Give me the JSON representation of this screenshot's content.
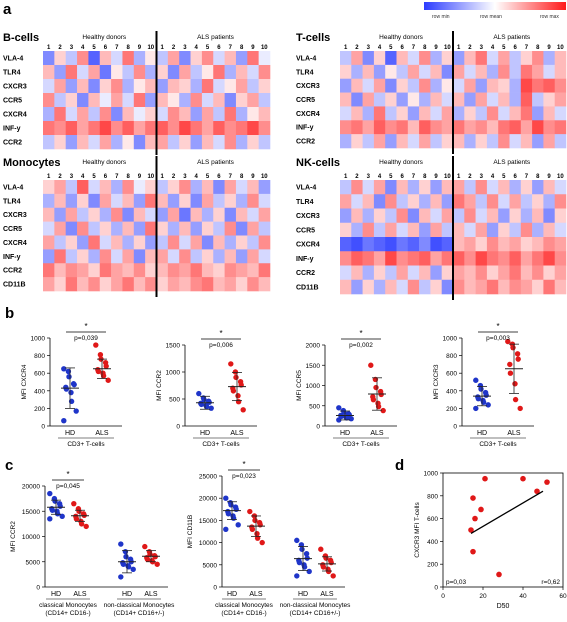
{
  "panel_letters": {
    "a": "a",
    "b": "b",
    "c": "c",
    "d": "d"
  },
  "legend": {
    "min": "row min",
    "mean": "row mean",
    "max": "row max",
    "colors": [
      "#2c3cff",
      "#ffffff",
      "#ff1a1a"
    ]
  },
  "heatmap_common": {
    "hd_label": "Healthy donors",
    "als_label": "ALS patients",
    "col_numbers": [
      "1",
      "2",
      "3",
      "4",
      "5",
      "6",
      "7",
      "8",
      "9",
      "10"
    ]
  },
  "heatmaps": [
    {
      "title": "B-cells",
      "rows": [
        "VLA-4",
        "TLR4",
        "CXCR3",
        "CCR5",
        "CXCR4",
        "INF-y",
        "CCR2"
      ],
      "cells": [
        [
          -0.6,
          0.2,
          -0.3,
          0.5,
          -0.8,
          0.3,
          -0.2,
          0.6,
          -0.4,
          0.1,
          -0.3,
          0.4,
          -0.6,
          0.2,
          0.5,
          -0.2,
          0.3,
          -0.5,
          0.6,
          -0.1
        ],
        [
          0.3,
          -0.5,
          0.6,
          -0.2,
          0.4,
          -0.7,
          0.1,
          -0.3,
          0.5,
          -0.4,
          0.2,
          -0.6,
          0.4,
          -0.3,
          0.1,
          0.6,
          -0.4,
          0.3,
          -0.2,
          0.5
        ],
        [
          -0.2,
          0.4,
          -0.5,
          0.3,
          -0.6,
          0.2,
          0.5,
          -0.4,
          0.1,
          0.3,
          -0.5,
          0.3,
          0.2,
          -0.4,
          0.6,
          -0.2,
          0.1,
          0.4,
          -0.3,
          0.2
        ],
        [
          0.5,
          -0.3,
          0.2,
          -0.6,
          0.3,
          -0.1,
          0.4,
          -0.2,
          0.6,
          -0.5,
          0.3,
          0.1,
          -0.4,
          0.5,
          -0.2,
          0.3,
          -0.6,
          0.2,
          0.4,
          -0.3
        ],
        [
          -0.4,
          0.6,
          -0.2,
          0.4,
          -0.3,
          0.5,
          -0.6,
          0.3,
          -0.1,
          0.2,
          -0.2,
          0.5,
          0.3,
          -0.5,
          0.4,
          -0.3,
          0.6,
          -0.4,
          0.1,
          0.3
        ],
        [
          0.6,
          0.5,
          0.7,
          0.4,
          0.6,
          0.8,
          0.5,
          0.7,
          0.4,
          0.6,
          0.7,
          0.5,
          0.8,
          0.6,
          0.4,
          0.7,
          0.5,
          0.6,
          0.8,
          0.5
        ],
        [
          -0.3,
          0.2,
          -0.5,
          0.3,
          -0.2,
          0.4,
          -0.4,
          0.1,
          -0.6,
          0.3,
          0.4,
          -0.3,
          0.2,
          -0.5,
          0.3,
          -0.2,
          0.5,
          -0.4,
          0.2,
          -0.3
        ]
      ]
    },
    {
      "title": "T-cells",
      "rows": [
        "VLA-4",
        "TLR4",
        "CXCR3",
        "CCR5",
        "CXCR4",
        "INF-y",
        "CCR2"
      ],
      "cells": [
        [
          -0.3,
          0.4,
          -0.6,
          0.2,
          -0.8,
          0.3,
          -0.2,
          0.5,
          -0.4,
          0.2,
          -0.5,
          0.3,
          0.6,
          -0.2,
          0.4,
          -0.3,
          0.2,
          0.5,
          -0.4,
          0.3
        ],
        [
          0.2,
          -0.4,
          0.3,
          -0.5,
          0.1,
          -0.3,
          0.4,
          -0.2,
          0.3,
          -0.6,
          0.4,
          -0.2,
          0.3,
          -0.4,
          0.5,
          -0.3,
          0.6,
          0.4,
          -0.2,
          0.3
        ],
        [
          -0.5,
          0.3,
          -0.2,
          0.4,
          -0.6,
          0.2,
          -0.3,
          0.5,
          -0.4,
          0.1,
          -0.2,
          0.4,
          -0.5,
          0.3,
          0.2,
          -0.4,
          0.8,
          0.6,
          0.7,
          0.5
        ],
        [
          0.3,
          -0.6,
          0.4,
          -0.3,
          0.2,
          -0.5,
          0.1,
          -0.4,
          0.3,
          -0.2,
          0.3,
          -0.5,
          0.4,
          -0.2,
          0.3,
          -0.4,
          0.7,
          -0.3,
          0.2,
          0.4
        ],
        [
          -0.2,
          0.3,
          -0.4,
          0.6,
          -0.3,
          0.2,
          -0.5,
          0.3,
          -0.2,
          0.4,
          -0.4,
          0.2,
          -0.3,
          0.5,
          -0.2,
          0.3,
          0.6,
          -0.5,
          0.3,
          -0.2
        ],
        [
          0.5,
          0.6,
          0.4,
          0.7,
          0.5,
          0.6,
          0.3,
          0.7,
          0.5,
          0.4,
          0.6,
          0.4,
          0.5,
          0.3,
          0.6,
          0.7,
          0.4,
          0.8,
          0.5,
          0.6
        ],
        [
          -0.4,
          0.2,
          -0.3,
          0.4,
          -0.5,
          0.3,
          -0.2,
          0.4,
          -0.3,
          0.2,
          0.3,
          -0.4,
          0.2,
          -0.3,
          0.5,
          -0.2,
          0.3,
          -0.5,
          0.4,
          -0.3
        ]
      ]
    },
    {
      "title": "Monocytes",
      "rows": [
        "VLA-4",
        "TLR4",
        "CXCR3",
        "CCR5",
        "CXCR4",
        "INF-y",
        "CCR2",
        "CD11B"
      ],
      "cells": [
        [
          0.2,
          0.4,
          -0.3,
          0.7,
          -0.2,
          0.3,
          -0.4,
          0.5,
          -0.1,
          0.2,
          -0.3,
          0.2,
          0.5,
          -0.4,
          0.3,
          -0.6,
          0.4,
          -0.2,
          0.3,
          -0.5
        ],
        [
          -0.4,
          0.3,
          -0.5,
          0.2,
          -0.6,
          0.4,
          -0.2,
          0.3,
          -0.5,
          0.6,
          0.3,
          -0.5,
          0.2,
          -0.6,
          0.4,
          -0.3,
          0.2,
          -0.4,
          0.5,
          -0.2
        ],
        [
          0.3,
          -0.5,
          0.4,
          -0.3,
          0.2,
          -0.4,
          0.5,
          -0.6,
          0.3,
          -0.2,
          -0.5,
          0.4,
          -0.7,
          0.3,
          -0.4,
          0.2,
          -0.6,
          0.3,
          -0.2,
          0.4
        ],
        [
          -0.2,
          0.4,
          -0.6,
          0.5,
          -0.3,
          0.2,
          -0.4,
          0.3,
          -0.5,
          0.6,
          0.2,
          -0.4,
          0.3,
          -0.5,
          0.2,
          -0.3,
          0.5,
          -0.6,
          0.4,
          -0.3
        ],
        [
          0.4,
          -0.3,
          0.2,
          -0.5,
          0.6,
          -0.2,
          0.3,
          -0.4,
          0.2,
          -0.5,
          -0.3,
          0.5,
          -0.2,
          0.4,
          -0.6,
          0.3,
          -0.4,
          0.2,
          -0.3,
          0.5
        ],
        [
          -0.5,
          0.6,
          -0.3,
          0.2,
          -0.4,
          0.5,
          -0.2,
          0.4,
          -0.6,
          0.3,
          0.4,
          -0.2,
          0.5,
          -0.3,
          0.2,
          -0.4,
          0.3,
          -0.5,
          0.4,
          -0.2
        ],
        [
          0.6,
          0.3,
          0.5,
          0.4,
          0.2,
          0.6,
          0.4,
          0.3,
          0.5,
          0.2,
          0.3,
          0.5,
          0.4,
          0.6,
          0.3,
          0.2,
          0.5,
          0.4,
          0.3,
          0.6
        ],
        [
          0.4,
          0.2,
          0.6,
          0.3,
          0.5,
          0.2,
          0.4,
          0.6,
          0.3,
          0.5,
          0.2,
          0.4,
          0.3,
          0.5,
          0.6,
          0.3,
          0.4,
          0.2,
          0.5,
          0.3
        ]
      ]
    },
    {
      "title": "NK-cells",
      "rows": [
        "VLA-4",
        "TLR4",
        "CXCR3",
        "CCR5",
        "CXCR4",
        "INF-y",
        "CCR2",
        "CD11B"
      ],
      "cells": [
        [
          -0.3,
          0.5,
          -0.2,
          0.4,
          -0.6,
          0.3,
          -0.4,
          0.2,
          -0.5,
          0.3,
          0.4,
          -0.3,
          0.5,
          -0.2,
          0.3,
          -0.4,
          0.2,
          -0.5,
          0.3,
          -0.2
        ],
        [
          0.4,
          -0.2,
          0.3,
          -0.6,
          0.5,
          -0.3,
          0.2,
          -0.4,
          0.3,
          -0.5,
          0.6,
          0.4,
          -0.3,
          0.5,
          -0.2,
          0.4,
          -0.3,
          0.2,
          -0.4,
          0.5
        ],
        [
          -0.5,
          0.3,
          -0.4,
          0.2,
          -0.3,
          0.5,
          -0.6,
          0.3,
          -0.2,
          0.4,
          -0.3,
          0.5,
          -0.2,
          0.3,
          -0.5,
          0.2,
          -0.4,
          0.3,
          -0.6,
          0.2
        ],
        [
          0.2,
          -0.4,
          0.5,
          -0.3,
          0.4,
          -0.2,
          0.3,
          -0.5,
          0.4,
          -0.3,
          0.3,
          -0.2,
          0.4,
          -0.5,
          0.2,
          -0.3,
          0.5,
          -0.4,
          0.3,
          -0.2
        ],
        [
          -0.8,
          -0.9,
          -0.7,
          -0.8,
          -0.9,
          -0.7,
          -0.8,
          -0.6,
          -0.9,
          -0.8,
          0.3,
          0.4,
          0.2,
          0.5,
          0.3,
          0.4,
          0.2,
          0.3,
          0.5,
          0.4
        ],
        [
          0.5,
          0.7,
          0.6,
          0.4,
          0.8,
          0.5,
          0.6,
          0.7,
          0.4,
          0.6,
          0.7,
          0.5,
          0.8,
          0.6,
          0.5,
          0.7,
          0.4,
          0.6,
          0.8,
          0.5
        ],
        [
          -0.2,
          0.3,
          -0.4,
          0.2,
          -0.3,
          0.4,
          -0.2,
          0.3,
          -0.5,
          0.2,
          0.4,
          0.3,
          0.5,
          0.2,
          0.4,
          0.6,
          0.3,
          0.5,
          0.2,
          0.4
        ],
        [
          0.3,
          -0.5,
          0.2,
          -0.4,
          0.3,
          -0.2,
          0.5,
          -0.3,
          0.2,
          -0.6,
          0.5,
          0.3,
          0.4,
          0.6,
          0.3,
          0.5,
          0.4,
          0.2,
          0.6,
          0.3
        ]
      ]
    }
  ],
  "chart_data": [
    {
      "type": "scatter",
      "panel": "b",
      "ylabel": "MFI CXCR4",
      "categories": [
        "HD",
        "ALS"
      ],
      "xlabel": "CD3+ T-cells",
      "pvalue": "p=0,039",
      "star": "*",
      "series": [
        {
          "name": "HD",
          "values": [
            650,
            620,
            560,
            480,
            470,
            440,
            420,
            380,
            280,
            170,
            60
          ]
        },
        {
          "name": "ALS",
          "values": [
            920,
            810,
            760,
            720,
            680,
            640,
            620,
            600,
            570,
            520
          ]
        }
      ],
      "mean": [
        430,
        650
      ],
      "sd": [
        230,
        110
      ],
      "ylim": [
        0,
        1000
      ],
      "yticks": [
        0,
        200,
        400,
        600,
        800,
        1000
      ]
    },
    {
      "type": "scatter",
      "panel": "b",
      "ylabel": "MFI CCR2",
      "categories": [
        "HD",
        "ALS"
      ],
      "xlabel": "CD3+ T-cells",
      "pvalue": "p=0,006",
      "star": "*",
      "series": [
        {
          "name": "HD",
          "values": [
            600,
            520,
            490,
            460,
            440,
            420,
            400,
            380,
            360,
            330
          ]
        },
        {
          "name": "ALS",
          "values": [
            1150,
            1000,
            900,
            820,
            760,
            700,
            650,
            560,
            450,
            300
          ]
        }
      ],
      "mean": [
        430,
        730
      ],
      "sd": [
        120,
        260
      ],
      "ylim": [
        0,
        1500
      ],
      "yticks": [
        0,
        500,
        1000,
        1500
      ]
    },
    {
      "type": "scatter",
      "panel": "b",
      "ylabel": "MFI CCR5",
      "categories": [
        "HD",
        "ALS"
      ],
      "xlabel": "CD3+ T-cells",
      "pvalue": "p=0,002",
      "star": "*",
      "series": [
        {
          "name": "HD",
          "values": [
            450,
            380,
            340,
            300,
            280,
            260,
            240,
            220,
            200,
            180,
            150
          ]
        },
        {
          "name": "ALS",
          "values": [
            1500,
            1150,
            950,
            850,
            780,
            720,
            650,
            560,
            480,
            380
          ]
        }
      ],
      "mean": [
        260,
        790
      ],
      "sd": [
        110,
        400
      ],
      "ylim": [
        0,
        2000
      ],
      "yticks": [
        0,
        500,
        1000,
        1500,
        2000
      ]
    },
    {
      "type": "scatter",
      "panel": "b",
      "ylabel": "MFI CXCR3",
      "categories": [
        "HD",
        "ALS"
      ],
      "xlabel": "CD3+ T-cells",
      "pvalue": "p=0,003",
      "star": "*",
      "series": [
        {
          "name": "HD",
          "values": [
            520,
            460,
            420,
            380,
            350,
            330,
            310,
            290,
            270,
            240,
            200
          ]
        },
        {
          "name": "ALS",
          "values": [
            960,
            930,
            890,
            820,
            760,
            700,
            600,
            480,
            300,
            200
          ]
        }
      ],
      "mean": [
        340,
        650
      ],
      "sd": [
        110,
        280
      ],
      "ylim": [
        0,
        1000
      ],
      "yticks": [
        0,
        200,
        400,
        600,
        800,
        1000
      ]
    },
    {
      "type": "scatter",
      "panel": "c",
      "ylabel": "MFI CCR2",
      "categories": [
        "HD",
        "ALS",
        "HD",
        "ALS"
      ],
      "group_labels": [
        "classical Monocytes\n(CD14+ CD16-)",
        "non-classical Monocytes\n(CD14+ CD16+/-)"
      ],
      "pvalue": "p=0,045",
      "star": "*",
      "series": [
        {
          "name": "HD",
          "values": [
            18500,
            17500,
            17000,
            16500,
            16000,
            15500,
            15200,
            15000,
            14500,
            14000,
            13500
          ]
        },
        {
          "name": "ALS",
          "values": [
            16500,
            15500,
            15000,
            14500,
            14200,
            14000,
            13500,
            13000,
            12500,
            12000
          ]
        },
        {
          "name": "HD",
          "values": [
            8500,
            7000,
            6000,
            5500,
            5000,
            4800,
            4500,
            4200,
            4000,
            3500,
            2000
          ]
        },
        {
          "name": "ALS",
          "values": [
            8000,
            7000,
            6500,
            6200,
            6000,
            5800,
            5500,
            5200,
            5000,
            4500
          ]
        }
      ],
      "mean": [
        15800,
        14100,
        5000,
        6100
      ],
      "sd": [
        1400,
        1100,
        2200,
        1100
      ],
      "ylim": [
        0,
        20000
      ],
      "yticks": [
        0,
        5000,
        10000,
        15000,
        20000
      ]
    },
    {
      "type": "scatter",
      "panel": "c",
      "ylabel": "MFI CD11B",
      "categories": [
        "HD",
        "ALS",
        "HD",
        "ALS"
      ],
      "group_labels": [
        "classical Monocytes\n(CD14+ CD16-)",
        "non-classical Monocytes\n(CD14+ CD16+/-)"
      ],
      "pvalue": "p=0,023",
      "star": "*",
      "series": [
        {
          "name": "HD",
          "values": [
            20000,
            19000,
            18500,
            18000,
            17500,
            17000,
            16500,
            16000,
            15500,
            14000,
            13000
          ]
        },
        {
          "name": "ALS",
          "values": [
            17000,
            16000,
            15000,
            14500,
            14000,
            13500,
            13000,
            12000,
            11000,
            10000
          ]
        },
        {
          "name": "HD",
          "values": [
            10500,
            9500,
            8500,
            7500,
            6500,
            6000,
            5500,
            5000,
            4500,
            3500,
            2500
          ]
        },
        {
          "name": "ALS",
          "values": [
            8500,
            7000,
            6500,
            6000,
            5500,
            5000,
            4500,
            4000,
            3500,
            2500
          ]
        }
      ],
      "mean": [
        17200,
        13700,
        6400,
        5200
      ],
      "sd": [
        2000,
        2300,
        2700,
        1600
      ],
      "ylim": [
        0,
        25000
      ],
      "yticks": [
        0,
        5000,
        10000,
        15000,
        20000,
        25000
      ]
    },
    {
      "type": "scatter",
      "panel": "d",
      "ylabel": "CXCR3 MFI T-cells",
      "xlabel": "D50",
      "pvalue": "p=0,03",
      "r": "r=0,62",
      "x": [
        14,
        15,
        15,
        16,
        19,
        21,
        28,
        40,
        47,
        52
      ],
      "y": [
        500,
        310,
        780,
        600,
        680,
        950,
        110,
        950,
        840,
        920
      ],
      "fit": [
        [
          14,
          470
        ],
        [
          50,
          840
        ]
      ],
      "xlim": [
        0,
        60
      ],
      "ylim": [
        0,
        1000
      ],
      "xticks": [
        0,
        20,
        40,
        60
      ],
      "yticks": [
        0,
        200,
        400,
        600,
        800,
        1000
      ]
    }
  ]
}
